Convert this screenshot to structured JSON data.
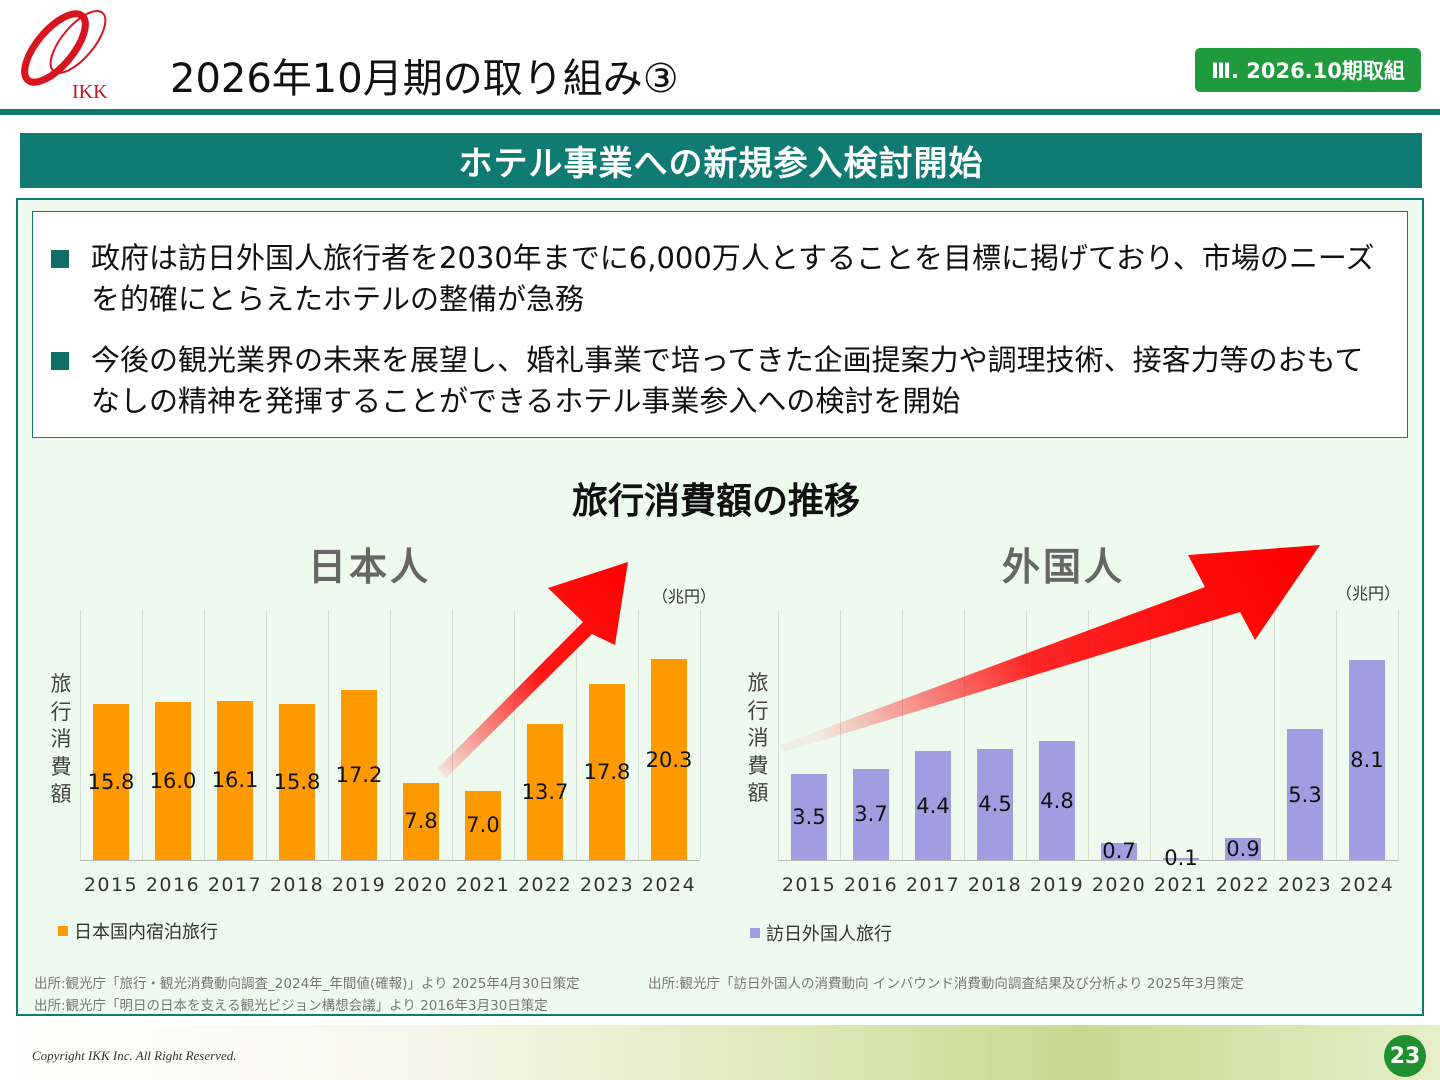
{
  "header": {
    "title": "2026年10月期の取り組み③",
    "badge": "Ⅲ. 2026.10期取組",
    "logo_text": "IKK"
  },
  "banner": "ホテル事業への新規参入検討開始",
  "bullets": [
    "政府は訪日外国人旅行者を2030年までに6,000万人とすることを目標に掲げており、市場のニーズを的確にとらえたホテルの整備が急務",
    "今後の観光業界の未来を展望し、婚礼事業で培ってきた企画提案力や調理技術、接客力等のおもてなしの精神を発揮することができるホテル事業参入への検討を開始"
  ],
  "chart_section_title": "旅行消費額の推移",
  "chart_data": [
    {
      "type": "bar",
      "title": "日本人",
      "unit": "（兆円）",
      "ylabel": "旅行消費額",
      "categories": [
        "2015",
        "2016",
        "2017",
        "2018",
        "2019",
        "2020",
        "2021",
        "2022",
        "2023",
        "2024"
      ],
      "series": [
        {
          "name": "日本国内宿泊旅行",
          "color": "#ff9900",
          "values": [
            15.8,
            16.0,
            16.1,
            15.8,
            17.2,
            7.8,
            7.0,
            13.7,
            17.8,
            20.3
          ]
        }
      ],
      "labels": [
        "15.8",
        "16.0",
        "16.1",
        "15.8",
        "17.2",
        "7.8",
        "7.0",
        "13.7",
        "17.8",
        "20.3"
      ],
      "ylim": [
        0,
        20.3
      ],
      "grid": "vertical",
      "legend": "bottom-left"
    },
    {
      "type": "bar",
      "title": "外国人",
      "unit": "（兆円）",
      "ylabel": "旅行消費額",
      "categories": [
        "2015",
        "2016",
        "2017",
        "2018",
        "2019",
        "2020",
        "2021",
        "2022",
        "2023",
        "2024"
      ],
      "series": [
        {
          "name": "訪日外国人旅行",
          "color": "#a09ee0",
          "values": [
            3.5,
            3.7,
            4.4,
            4.5,
            4.8,
            0.7,
            0.1,
            0.9,
            5.3,
            8.1
          ]
        }
      ],
      "labels": [
        "3.5",
        "3.7",
        "4.4",
        "4.5",
        "4.8",
        "0.7",
        "0.1",
        "0.9",
        "5.3",
        "8.1"
      ],
      "ylim": [
        0,
        8.1
      ],
      "grid": "vertical",
      "legend": "bottom-left"
    }
  ],
  "sources": {
    "left": [
      "出所:観光庁「旅行・観光消費動向調査_2024年_年間値(確報)」より 2025年4月30日策定",
      "出所:観光庁「明日の日本を支える観光ビジョン構想会議」より 2016年3月30日策定"
    ],
    "right": "出所:観光庁「訪日外国人の消費動向 インバウンド消費動向調査結果及び分析より 2025年3月策定"
  },
  "footer": {
    "copyright": "Copyright IKK Inc. All Right Reserved.",
    "page": "23"
  }
}
